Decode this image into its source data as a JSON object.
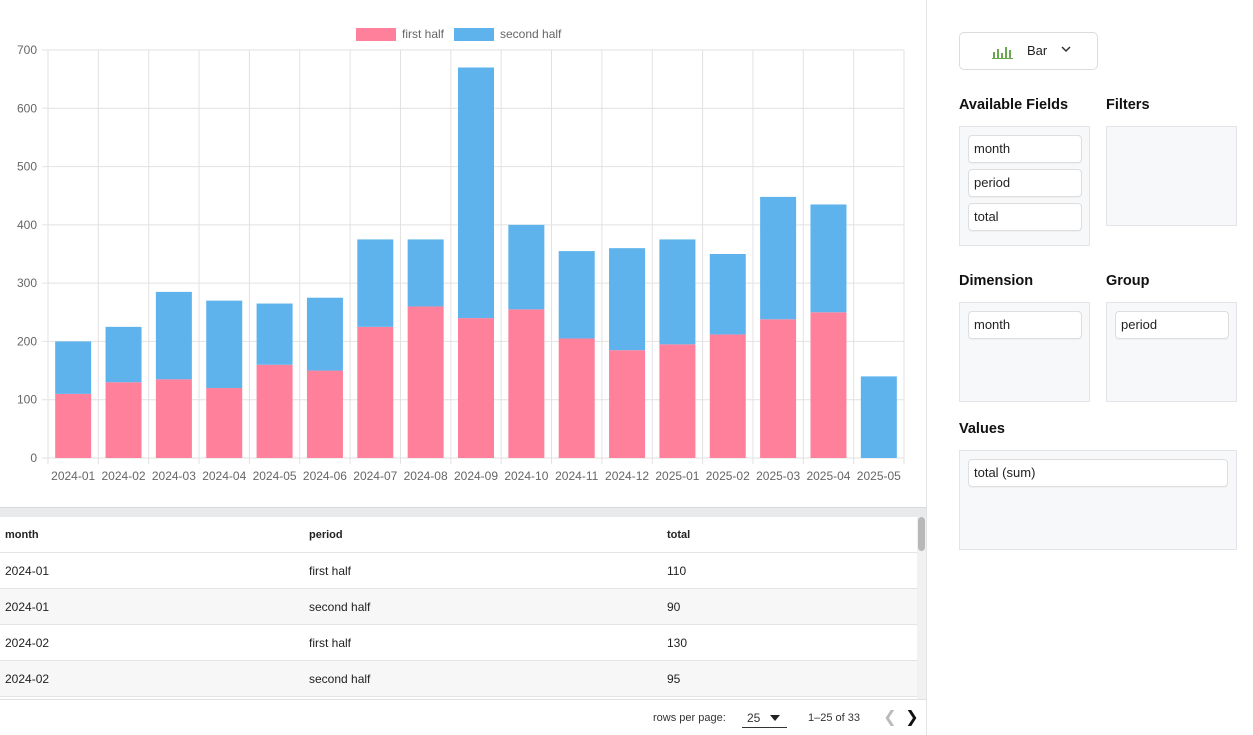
{
  "chart_data": {
    "type": "bar",
    "stacked": true,
    "categories": [
      "2024-01",
      "2024-02",
      "2024-03",
      "2024-04",
      "2024-05",
      "2024-06",
      "2024-07",
      "2024-08",
      "2024-09",
      "2024-10",
      "2024-11",
      "2024-12",
      "2025-01",
      "2025-02",
      "2025-03",
      "2025-04",
      "2025-05"
    ],
    "series": [
      {
        "name": "first half",
        "color": "#ff809b",
        "values": [
          110,
          130,
          135,
          120,
          160,
          150,
          225,
          260,
          240,
          255,
          205,
          185,
          195,
          212,
          238,
          250,
          0
        ]
      },
      {
        "name": "second half",
        "color": "#5eb3ec",
        "values": [
          90,
          95,
          150,
          150,
          105,
          125,
          150,
          115,
          430,
          145,
          150,
          175,
          180,
          138,
          210,
          185,
          140
        ]
      }
    ],
    "title": "",
    "xlabel": "",
    "ylabel": "",
    "ylim": [
      0,
      700
    ],
    "yticks": [
      0,
      100,
      200,
      300,
      400,
      500,
      600,
      700
    ],
    "grid": true,
    "legend": "top-center"
  },
  "table": {
    "columns": [
      "month",
      "period",
      "total"
    ],
    "rows": [
      [
        "2024-01",
        "first half",
        "110"
      ],
      [
        "2024-01",
        "second half",
        "90"
      ],
      [
        "2024-02",
        "first half",
        "130"
      ],
      [
        "2024-02",
        "second half",
        "95"
      ]
    ]
  },
  "pager": {
    "rows_per_page_label": "rows per page:",
    "rows_per_page_value": "25",
    "range_text": "1–25 of 33",
    "prev_icon": "chevron-left-icon",
    "next_icon": "chevron-right-icon"
  },
  "side": {
    "chart_type": {
      "label": "Bar",
      "icon": "bar-chart-icon",
      "icon_color": "#6aa84f"
    },
    "available_fields": {
      "title": "Available Fields",
      "items": [
        "month",
        "period",
        "total"
      ]
    },
    "filters": {
      "title": "Filters",
      "items": []
    },
    "dimension": {
      "title": "Dimension",
      "items": [
        "month"
      ]
    },
    "group": {
      "title": "Group",
      "items": [
        "period"
      ]
    },
    "values": {
      "title": "Values",
      "items": [
        "total (sum)"
      ]
    }
  }
}
